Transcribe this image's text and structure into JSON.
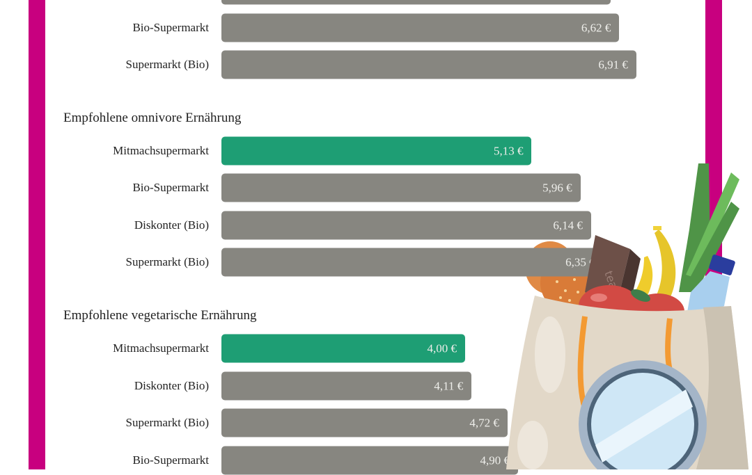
{
  "colors": {
    "accent_border": "#c8007f",
    "highlight_bar": "#1e9e74",
    "default_bar": "#878680",
    "value_text": "#eeeeea"
  },
  "chart_data": {
    "type": "bar",
    "orientation": "horizontal",
    "unit": "€",
    "groups": [
      {
        "title": "",
        "bars": [
          {
            "label": "",
            "value": 6.47,
            "value_label": "",
            "highlight": false
          },
          {
            "label": "Bio-Supermarkt",
            "value": 6.62,
            "value_label": "6,62 €",
            "highlight": false
          },
          {
            "label": "Supermarkt (Bio)",
            "value": 6.91,
            "value_label": "6,91 €",
            "highlight": false
          }
        ]
      },
      {
        "title": "Empfohlene omnivore Ernährung",
        "bars": [
          {
            "label": "Mitmachsupermarkt",
            "value": 5.13,
            "value_label": "5,13 €",
            "highlight": true
          },
          {
            "label": "Bio-Supermarkt",
            "value": 5.96,
            "value_label": "5,96 €",
            "highlight": false
          },
          {
            "label": "Diskonter (Bio)",
            "value": 6.14,
            "value_label": "6,14 €",
            "highlight": false
          },
          {
            "label": "Supermarkt (Bio)",
            "value": 6.35,
            "value_label": "6,35 €",
            "highlight": false
          }
        ]
      },
      {
        "title": "Empfohlene vegetarische Ernährung",
        "bars": [
          {
            "label": "Mitmachsupermarkt",
            "value": 4.0,
            "value_label": "4,00 €",
            "highlight": true
          },
          {
            "label": "Diskonter (Bio)",
            "value": 4.11,
            "value_label": "4,11 €",
            "highlight": false
          },
          {
            "label": "Supermarkt (Bio)",
            "value": 4.72,
            "value_label": "4,72 €",
            "highlight": false
          },
          {
            "label": "Bio-Supermarkt",
            "value": 4.9,
            "value_label": "4,90 €",
            "highlight": false
          }
        ]
      }
    ]
  },
  "illustration": {
    "name": "shopping-bag-with-magnifier",
    "tea_box_text": "tea"
  }
}
